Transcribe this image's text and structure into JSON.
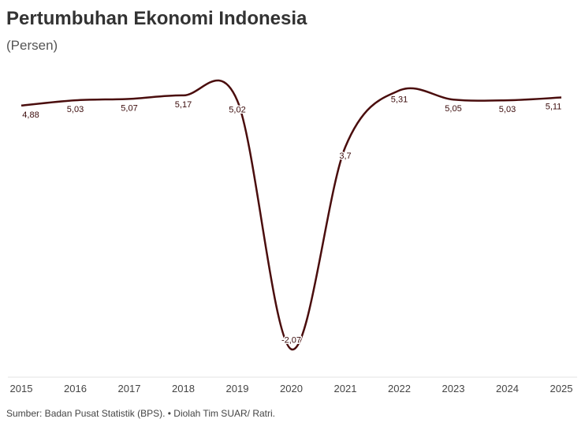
{
  "chart_data": {
    "type": "line",
    "title": "Pertumbuhan Ekonomi Indonesia",
    "subtitle": "(Persen)",
    "source": "Sumber: Badan Pusat Statistik (BPS). • Diolah Tim SUAR/ Ratri.",
    "x": [
      2015,
      2016,
      2017,
      2018,
      2019,
      2020,
      2021,
      2022,
      2023,
      2024,
      2025
    ],
    "xlim": [
      2015,
      2025
    ],
    "xticks": [
      2015,
      2016,
      2017,
      2018,
      2019,
      2020,
      2021,
      2022,
      2023,
      2024,
      2025
    ],
    "ylim": [
      -3,
      6
    ],
    "series": [
      {
        "name": "Pertumbuhan Ekonomi",
        "color": "#4a0d0d",
        "values": [
          4.88,
          5.03,
          5.07,
          5.17,
          5.02,
          -2.07,
          3.7,
          5.31,
          5.05,
          5.03,
          5.11
        ],
        "value_labels": [
          "4,88",
          "5,03",
          "5,07",
          "5,17",
          "5,02",
          "-2,07",
          "3,7",
          "5,31",
          "5,05",
          "5,03",
          "5,11"
        ]
      }
    ]
  }
}
